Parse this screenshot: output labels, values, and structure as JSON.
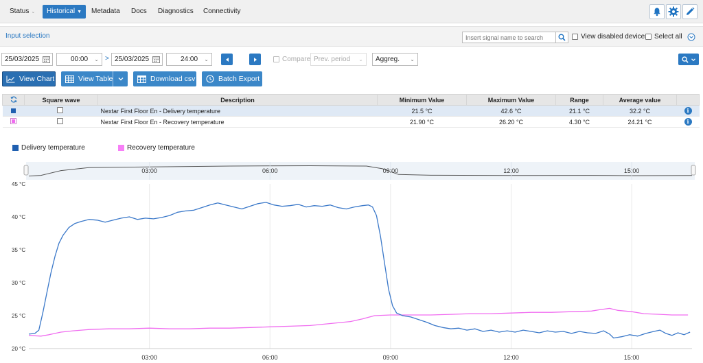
{
  "nav": {
    "items": [
      {
        "label": "Status",
        "x": 14,
        "dropdown": true,
        "active": false
      },
      {
        "label": "Historical",
        "x": 62,
        "dropdown": true,
        "active": true
      },
      {
        "label": "Metadata",
        "x": 133,
        "dropdown": false,
        "active": false
      },
      {
        "label": "Docs",
        "x": 191,
        "dropdown": false,
        "active": false
      },
      {
        "label": "Diagnostics",
        "x": 230,
        "dropdown": false,
        "active": false
      },
      {
        "label": "Connectivity",
        "x": 296,
        "dropdown": false,
        "active": false
      }
    ],
    "icons": [
      "bell-icon",
      "gear-icon",
      "pencil-icon"
    ]
  },
  "input_selection": {
    "title": "Input selection",
    "search_placeholder": "Insert signal name to search",
    "view_disabled_label": "View disabled devices",
    "select_all_label": "Select all"
  },
  "date_range": {
    "start_date": "25/03/2025",
    "start_time": "00:00",
    "end_date": "25/03/2025",
    "end_time": "24:00",
    "separator": ">",
    "compare_label": "Compare",
    "compare_period": "Prev. period",
    "aggregation": "Aggreg."
  },
  "actions": {
    "view_chart": "View Chart",
    "view_table": "View Table",
    "download_csv": "Download csv",
    "batch_export": "Batch Export"
  },
  "table": {
    "headers": [
      "Square wave",
      "Description",
      "Minimum Value",
      "Maximum Value",
      "Range",
      "Average value"
    ],
    "rows": [
      {
        "color": "#1f5fb0",
        "description": "Nextar First Floor En - Delivery temperature",
        "min": "21.5 °C",
        "max": "42.6 °C",
        "range": "21.1 °C",
        "avg": "32.2 °C",
        "selected": true
      },
      {
        "color": "#f06cf0",
        "description": "Nextar First Floor En - Recovery temperature",
        "min": "21.90 °C",
        "max": "26.20 °C",
        "range": "4.30 °C",
        "avg": "24.21 °C",
        "selected": false
      }
    ]
  },
  "chart_data": {
    "type": "line",
    "legend": "top-left",
    "grid": true,
    "y_unit": "°C",
    "ylim": [
      20,
      45
    ],
    "yticks": [
      "20 °C",
      "25 °C",
      "30 °C",
      "35 °C",
      "40 °C",
      "45 °C"
    ],
    "xticks": [
      "03:00",
      "06:00",
      "09:00",
      "12:00",
      "15:00"
    ],
    "xlim_hours": [
      0,
      16.5
    ],
    "series": [
      {
        "name": "Delivery temperature",
        "color": "#3a78c9",
        "legend_color": "#1f5fb0",
        "points": [
          [
            0,
            22.2
          ],
          [
            0.15,
            22.3
          ],
          [
            0.25,
            22.8
          ],
          [
            0.35,
            25.5
          ],
          [
            0.45,
            28.5
          ],
          [
            0.55,
            31.5
          ],
          [
            0.65,
            34
          ],
          [
            0.75,
            36
          ],
          [
            0.85,
            37.2
          ],
          [
            1.0,
            38.4
          ],
          [
            1.15,
            39
          ],
          [
            1.3,
            39.3
          ],
          [
            1.5,
            39.6
          ],
          [
            1.7,
            39.5
          ],
          [
            1.9,
            39.2
          ],
          [
            2.1,
            39.5
          ],
          [
            2.3,
            39.8
          ],
          [
            2.5,
            40
          ],
          [
            2.7,
            39.6
          ],
          [
            2.9,
            39.8
          ],
          [
            3.1,
            39.7
          ],
          [
            3.3,
            39.9
          ],
          [
            3.5,
            40.2
          ],
          [
            3.7,
            40.7
          ],
          [
            3.9,
            40.9
          ],
          [
            4.1,
            41
          ],
          [
            4.3,
            41.4
          ],
          [
            4.5,
            41.8
          ],
          [
            4.7,
            42.1
          ],
          [
            4.9,
            41.8
          ],
          [
            5.1,
            41.5
          ],
          [
            5.3,
            41.2
          ],
          [
            5.5,
            41.6
          ],
          [
            5.7,
            42
          ],
          [
            5.9,
            42.2
          ],
          [
            6.1,
            41.8
          ],
          [
            6.3,
            41.6
          ],
          [
            6.5,
            41.7
          ],
          [
            6.7,
            41.9
          ],
          [
            6.9,
            41.5
          ],
          [
            7.1,
            41.7
          ],
          [
            7.3,
            41.6
          ],
          [
            7.5,
            41.8
          ],
          [
            7.7,
            41.4
          ],
          [
            7.9,
            41.2
          ],
          [
            8.1,
            41.5
          ],
          [
            8.3,
            41.7
          ],
          [
            8.45,
            41.8
          ],
          [
            8.55,
            41.5
          ],
          [
            8.65,
            40.2
          ],
          [
            8.75,
            37
          ],
          [
            8.85,
            33
          ],
          [
            8.95,
            29
          ],
          [
            9.05,
            26.5
          ],
          [
            9.15,
            25.4
          ],
          [
            9.3,
            25
          ],
          [
            9.5,
            24.8
          ],
          [
            9.7,
            24.4
          ],
          [
            9.9,
            24
          ],
          [
            10.1,
            23.5
          ],
          [
            10.3,
            23.2
          ],
          [
            10.5,
            23
          ],
          [
            10.7,
            23.1
          ],
          [
            10.9,
            22.8
          ],
          [
            11.1,
            23
          ],
          [
            11.3,
            22.6
          ],
          [
            11.5,
            22.8
          ],
          [
            11.7,
            22.5
          ],
          [
            11.9,
            22.7
          ],
          [
            12.1,
            22.5
          ],
          [
            12.3,
            22.8
          ],
          [
            12.5,
            22.6
          ],
          [
            12.7,
            22.4
          ],
          [
            12.9,
            22.7
          ],
          [
            13.1,
            22.5
          ],
          [
            13.3,
            22.6
          ],
          [
            13.5,
            22.3
          ],
          [
            13.7,
            22.6
          ],
          [
            13.9,
            22.4
          ],
          [
            14.1,
            22.3
          ],
          [
            14.3,
            22.7
          ],
          [
            14.45,
            22.2
          ],
          [
            14.55,
            21.6
          ],
          [
            14.75,
            21.8
          ],
          [
            14.95,
            22.1
          ],
          [
            15.15,
            21.9
          ],
          [
            15.35,
            22.3
          ],
          [
            15.55,
            22.6
          ],
          [
            15.7,
            22.8
          ],
          [
            15.85,
            22.3
          ],
          [
            16.0,
            22
          ],
          [
            16.15,
            22.4
          ],
          [
            16.3,
            22.1
          ],
          [
            16.45,
            22.5
          ]
        ]
      },
      {
        "name": "Recovery temperature",
        "color": "#f06cf0",
        "legend_color": "#f77ff7",
        "points": [
          [
            0,
            22
          ],
          [
            0.3,
            21.9
          ],
          [
            0.5,
            22.1
          ],
          [
            0.8,
            22.5
          ],
          [
            1.1,
            22.7
          ],
          [
            1.5,
            22.9
          ],
          [
            2,
            23
          ],
          [
            2.5,
            23
          ],
          [
            3,
            23.1
          ],
          [
            3.5,
            23
          ],
          [
            4,
            23
          ],
          [
            4.5,
            23.1
          ],
          [
            5,
            23.1
          ],
          [
            5.5,
            23.2
          ],
          [
            6,
            23.3
          ],
          [
            6.5,
            23.4
          ],
          [
            7,
            23.5
          ],
          [
            7.5,
            23.8
          ],
          [
            8,
            24.1
          ],
          [
            8.3,
            24.5
          ],
          [
            8.6,
            25
          ],
          [
            9,
            25.1
          ],
          [
            9.5,
            25.1
          ],
          [
            10,
            25.1
          ],
          [
            10.5,
            25.2
          ],
          [
            11,
            25.3
          ],
          [
            11.5,
            25.3
          ],
          [
            12,
            25.4
          ],
          [
            12.5,
            25.5
          ],
          [
            13,
            25.5
          ],
          [
            13.5,
            25.6
          ],
          [
            14,
            25.7
          ],
          [
            14.2,
            25.9
          ],
          [
            14.45,
            26.1
          ],
          [
            14.65,
            25.8
          ],
          [
            15,
            25.6
          ],
          [
            15.3,
            25.3
          ],
          [
            15.7,
            25.2
          ],
          [
            16.0,
            25.1
          ],
          [
            16.4,
            25.1
          ]
        ]
      }
    ],
    "navigator": {
      "points": [
        [
          0,
          24
        ],
        [
          0.3,
          25
        ],
        [
          0.8,
          33
        ],
        [
          1.5,
          38
        ],
        [
          3,
          39
        ],
        [
          5,
          40.5
        ],
        [
          7,
          41
        ],
        [
          8.4,
          40.5
        ],
        [
          8.8,
          36
        ],
        [
          9.2,
          26.5
        ],
        [
          10,
          25.2
        ],
        [
          12,
          24.8
        ],
        [
          14,
          25
        ],
        [
          15,
          24.6
        ],
        [
          16.5,
          24.8
        ]
      ],
      "ylim": [
        20,
        45
      ]
    }
  }
}
